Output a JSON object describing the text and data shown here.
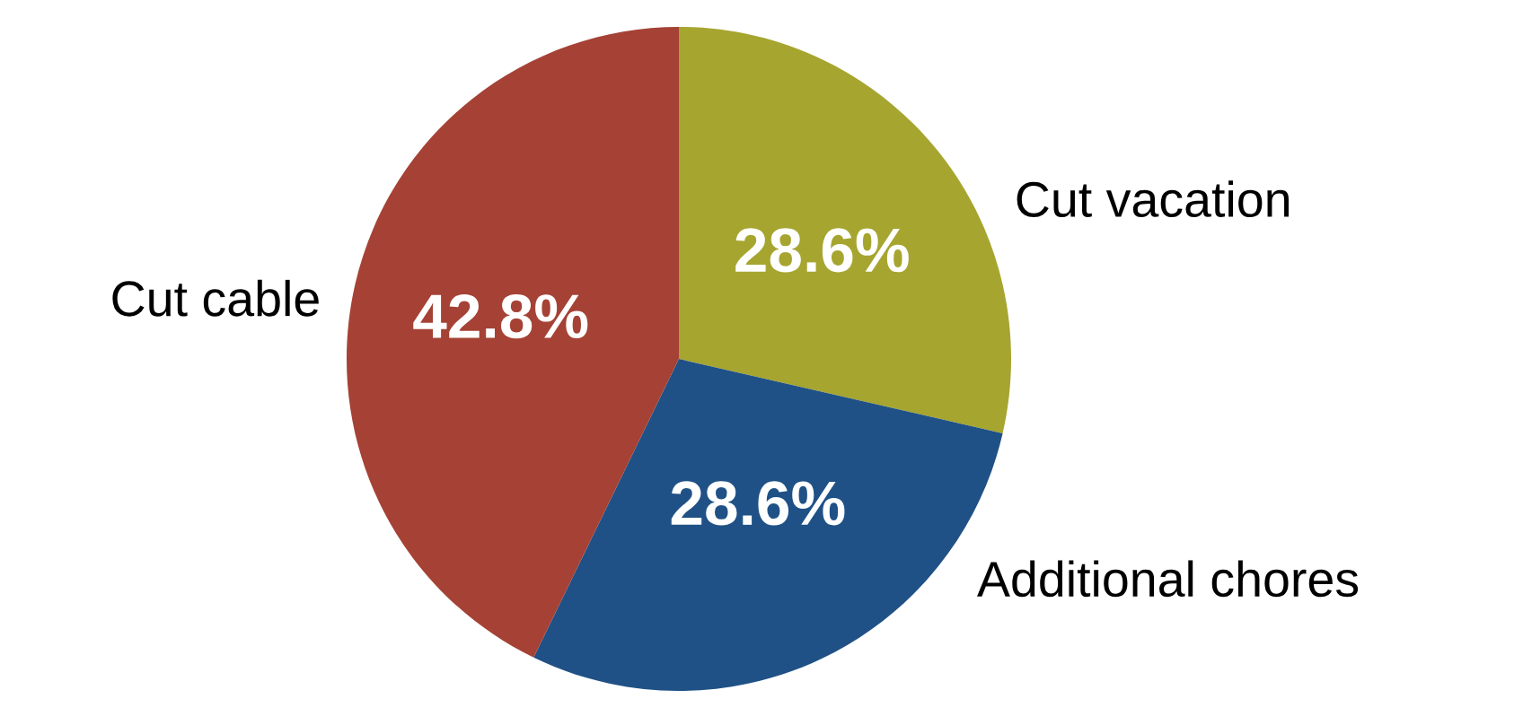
{
  "chart_data": {
    "type": "pie",
    "categories": [
      "Cut vacation",
      "Additional chores",
      "Cut cable"
    ],
    "values": [
      28.6,
      28.6,
      42.8
    ],
    "colors": [
      "#a6a52f",
      "#1f5186",
      "#a54235"
    ],
    "value_labels": [
      "28.6%",
      "28.6%",
      "42.8%"
    ],
    "legend": false
  }
}
